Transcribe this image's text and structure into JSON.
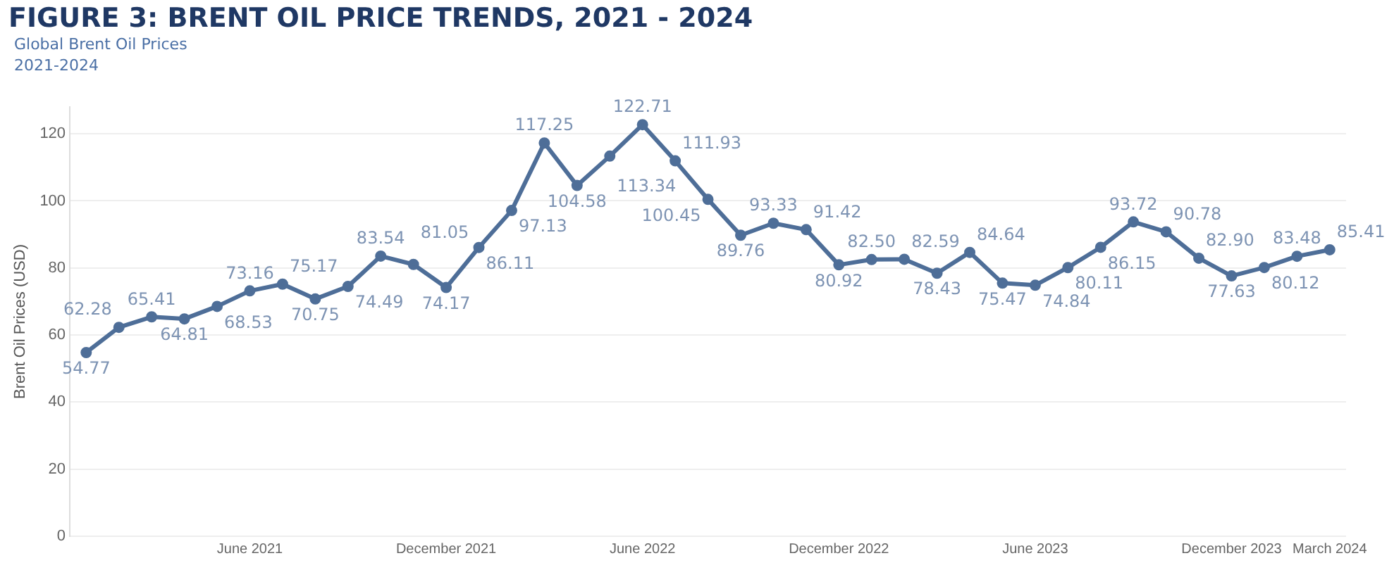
{
  "chart_data": {
    "type": "line",
    "title": "FIGURE 3: BRENT OIL PRICE TRENDS, 2021 - 2024",
    "subtitle": "Global Brent Oil Prices\n2021-2024",
    "ylabel": "Brent Oil Prices (USD)",
    "categories": [
      null,
      null,
      null,
      null,
      null,
      "June 2021",
      null,
      null,
      null,
      null,
      null,
      "December 2021",
      null,
      null,
      null,
      null,
      null,
      "June 2022",
      null,
      null,
      null,
      null,
      null,
      "December 2022",
      null,
      null,
      null,
      null,
      null,
      "June 2023",
      null,
      null,
      null,
      null,
      null,
      "December 2023",
      null,
      null,
      "March 2024"
    ],
    "series": [
      {
        "color": "#4e6e98",
        "values": [
          54.77,
          62.28,
          65.41,
          64.81,
          68.53,
          73.16,
          75.17,
          70.75,
          74.49,
          83.54,
          81.05,
          74.17,
          86.11,
          97.13,
          117.25,
          104.58,
          113.34,
          122.71,
          111.93,
          100.45,
          89.76,
          93.33,
          91.42,
          80.92,
          82.5,
          82.59,
          78.43,
          84.64,
          75.47,
          74.84,
          80.11,
          86.15,
          93.72,
          90.78,
          82.9,
          77.63,
          80.12,
          83.48,
          85.41
        ],
        "value_labels": [
          "54.77",
          "62.28",
          "65.41",
          "64.81",
          "68.53",
          "73.16",
          "75.17",
          "70.75",
          "74.49",
          "83.54",
          "81.05",
          "74.17",
          "86.11",
          "97.13",
          "117.25",
          "104.58",
          "113.34",
          "122.71",
          "111.93",
          "100.45",
          "89.76",
          "93.33",
          "91.42",
          "80.92",
          "82.50",
          "82.59",
          "78.43",
          "84.64",
          "75.47",
          "74.84",
          "80.11",
          "86.15",
          "93.72",
          "90.78",
          "82.90",
          "77.63",
          "80.12",
          "83.48",
          "85.41"
        ]
      }
    ],
    "ylim": [
      0,
      128
    ],
    "yticks": [
      0,
      20,
      40,
      60,
      80,
      100,
      120
    ],
    "grid": "y",
    "legend": false,
    "marker": "circle",
    "line_style": "solid"
  }
}
